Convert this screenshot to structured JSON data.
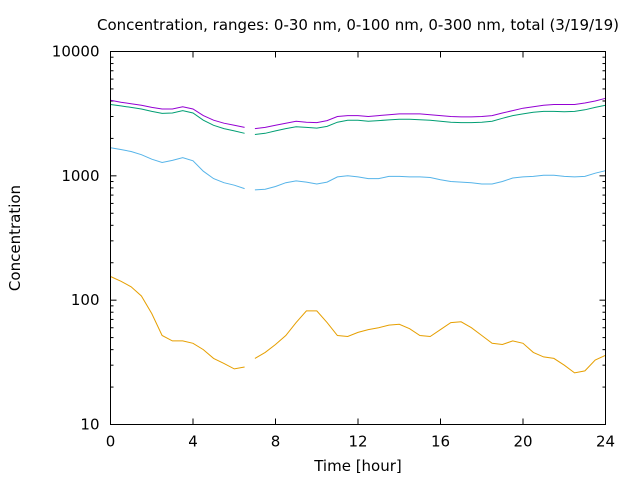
{
  "chart_data": {
    "type": "line",
    "title": "Concentration, ranges: 0-30 nm, 0-100 nm, 0-300 nm, total (3/19/19)",
    "xlabel": "Time [hour]",
    "ylabel": "Concentration",
    "xlim": [
      0,
      24
    ],
    "ylim": [
      10,
      10000
    ],
    "yscale": "log",
    "grid": false,
    "legend": "none",
    "xticks": [
      0,
      4,
      8,
      12,
      16,
      20,
      24
    ],
    "yticks": [
      10,
      100,
      1000,
      10000
    ],
    "gap_after_hour": 6.5,
    "x": [
      0,
      0.5,
      1,
      1.5,
      2,
      2.5,
      3,
      3.5,
      4,
      4.5,
      5,
      5.5,
      6,
      6.5,
      7,
      7.5,
      8,
      8.5,
      9,
      9.5,
      10,
      10.5,
      11,
      11.5,
      12,
      12.5,
      13,
      13.5,
      14,
      14.5,
      15,
      15.5,
      16,
      16.5,
      17,
      17.5,
      18,
      18.5,
      19,
      19.5,
      20,
      20.5,
      21,
      21.5,
      22,
      22.5,
      23,
      23.5,
      24
    ],
    "series": [
      {
        "color": "#e69f00",
        "values": [
          155,
          142,
          128,
          108,
          78,
          52,
          47,
          47,
          45,
          40,
          34,
          31,
          28,
          29,
          34,
          38,
          44,
          52,
          66,
          82,
          82,
          66,
          52,
          51,
          55,
          58,
          60,
          63,
          64,
          59,
          52,
          51,
          58,
          66,
          67,
          60,
          52,
          45,
          44,
          47,
          45,
          38,
          35,
          34,
          30,
          26,
          27,
          33,
          36
        ]
      },
      {
        "color": "#56b4e9",
        "values": [
          1680,
          1630,
          1570,
          1480,
          1360,
          1280,
          1330,
          1400,
          1320,
          1090,
          950,
          880,
          840,
          790,
          770,
          780,
          820,
          880,
          910,
          890,
          860,
          890,
          980,
          1000,
          980,
          950,
          950,
          990,
          990,
          980,
          980,
          970,
          930,
          900,
          890,
          880,
          860,
          860,
          900,
          960,
          980,
          990,
          1010,
          1010,
          990,
          980,
          990,
          1050,
          1100
        ]
      },
      {
        "color": "#009e73",
        "values": [
          3750,
          3650,
          3550,
          3450,
          3300,
          3180,
          3200,
          3350,
          3200,
          2800,
          2550,
          2400,
          2300,
          2200,
          2150,
          2200,
          2300,
          2400,
          2480,
          2450,
          2420,
          2500,
          2700,
          2800,
          2800,
          2750,
          2780,
          2820,
          2850,
          2850,
          2830,
          2800,
          2750,
          2700,
          2680,
          2680,
          2700,
          2750,
          2900,
          3050,
          3150,
          3250,
          3300,
          3300,
          3280,
          3300,
          3400,
          3550,
          3700
        ]
      },
      {
        "color": "#9400d3",
        "values": [
          4050,
          3900,
          3800,
          3700,
          3550,
          3450,
          3450,
          3600,
          3450,
          3050,
          2800,
          2650,
          2550,
          2450,
          2400,
          2450,
          2550,
          2650,
          2750,
          2700,
          2680,
          2780,
          3000,
          3050,
          3050,
          3000,
          3050,
          3100,
          3150,
          3150,
          3150,
          3100,
          3050,
          3000,
          2980,
          2980,
          3000,
          3050,
          3200,
          3350,
          3500,
          3600,
          3700,
          3750,
          3750,
          3750,
          3850,
          4000,
          4200
        ]
      }
    ]
  }
}
